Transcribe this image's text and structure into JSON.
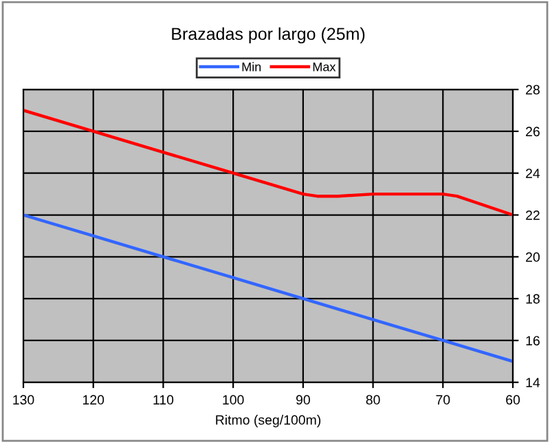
{
  "chart_data": {
    "type": "line",
    "title": "Brazadas por largo (25m)",
    "xlabel": "Ritmo (seg/100m)",
    "series": [
      {
        "name": "Min",
        "color": "#3366ff",
        "x": [
          130,
          120,
          110,
          100,
          90,
          80,
          70,
          60
        ],
        "values": [
          22,
          21,
          20,
          19,
          18,
          17,
          16,
          15
        ]
      },
      {
        "name": "Max",
        "color": "#ff0000",
        "x": [
          130,
          120,
          110,
          100,
          95,
          90,
          88,
          85,
          80,
          70,
          68,
          60
        ],
        "values": [
          27,
          26,
          25,
          24,
          23.5,
          23,
          22.9,
          22.9,
          23,
          23,
          22.9,
          22
        ]
      }
    ],
    "xlim": [
      130,
      60
    ],
    "xticks": [
      130,
      120,
      110,
      100,
      90,
      80,
      70,
      60
    ],
    "ylim": [
      14,
      28
    ],
    "yticks": [
      14,
      16,
      18,
      20,
      22,
      24,
      26,
      28
    ],
    "grid": true,
    "legend": "top",
    "marker": "none",
    "line_style": "solid"
  }
}
